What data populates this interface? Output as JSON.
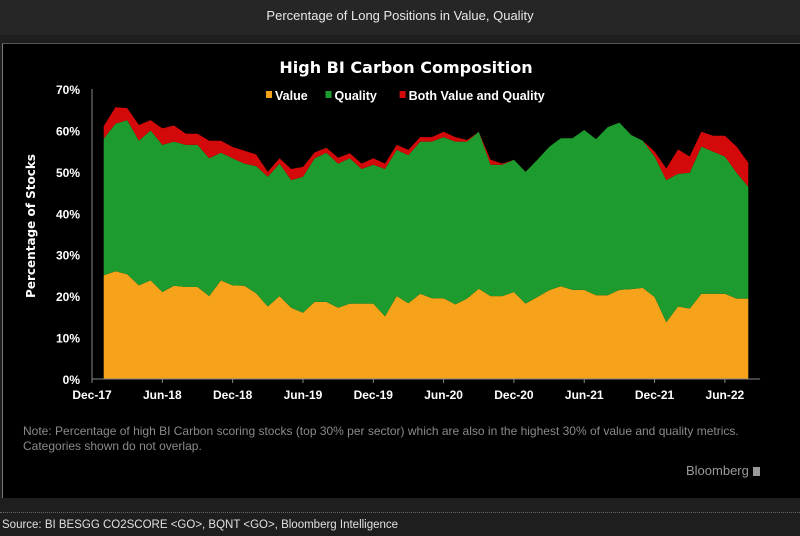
{
  "header": {
    "title": "Percentage of Long Positions in Value, Quality"
  },
  "chart_data": {
    "type": "area",
    "stacked": true,
    "title": "High BI Carbon Composition",
    "ylabel": "Percentage of Stocks",
    "xlabel": "",
    "ylim": [
      0,
      70
    ],
    "yticks": [
      "0%",
      "10%",
      "20%",
      "30%",
      "40%",
      "50%",
      "60%",
      "70%"
    ],
    "xticks": [
      "Dec-17",
      "Jun-18",
      "Dec-18",
      "Jun-19",
      "Dec-19",
      "Jun-20",
      "Dec-20",
      "Jun-21",
      "Dec-21",
      "Jun-22"
    ],
    "x_start": "Jan-18",
    "x_frequency": "monthly",
    "legend_position": "top-center",
    "grid": false,
    "series": [
      {
        "name": "Value",
        "color": "#f7a21b",
        "values": [
          25,
          26,
          25.3,
          22.6,
          23.8,
          21,
          22.5,
          22.2,
          22.2,
          20,
          23.8,
          22.6,
          22.5,
          20.7,
          17.5,
          20,
          17.2,
          16,
          18.6,
          18.6,
          17.2,
          18.2,
          18.2,
          18.2,
          15.1,
          20,
          18.3,
          20.6,
          19.5,
          19.5,
          18,
          19.4,
          21.8,
          20,
          20,
          21,
          18.2,
          19.8,
          21.4,
          22.4,
          21.5,
          21.5,
          20.2,
          20.2,
          21.5,
          21.7,
          22,
          19.8,
          13.7,
          17.5,
          17,
          20.6,
          20.6,
          20.6,
          19.4,
          19.4
        ]
      },
      {
        "name": "Quality",
        "color": "#1e9b2e",
        "values": [
          33,
          35.6,
          37.2,
          34.9,
          36.2,
          35.5,
          34.8,
          34.3,
          34.3,
          33.3,
          30.8,
          30.7,
          29.5,
          30.7,
          31.3,
          32,
          30.8,
          32.8,
          34.7,
          36,
          34.8,
          35.1,
          32.5,
          33.5,
          35.6,
          35.3,
          35.7,
          36.7,
          37.8,
          38.9,
          39.3,
          37.9,
          37.9,
          31.7,
          31.7,
          31.9,
          31.8,
          33.1,
          34.6,
          35.7,
          36.6,
          38.6,
          37.7,
          40.6,
          40.4,
          37.2,
          35.5,
          33.9,
          34.3,
          32,
          32.8,
          35.5,
          34.3,
          33.1,
          30.4,
          27
        ]
      },
      {
        "name": "Both Value and Quality",
        "color": "#d40a0a",
        "values": [
          3,
          4,
          2.9,
          3.8,
          2.5,
          4,
          3.9,
          2.7,
          2.7,
          4.2,
          2.9,
          2.7,
          3.1,
          2.8,
          1.2,
          1.3,
          2.7,
          2.4,
          1.4,
          1.2,
          1.4,
          1.2,
          1.3,
          1.6,
          1.3,
          1.2,
          1.3,
          1.1,
          1.1,
          1.3,
          1.1,
          0.4,
          0,
          1.2,
          0.3,
          0,
          0,
          0,
          0,
          0,
          0,
          0,
          0,
          0,
          0,
          0,
          0,
          1.2,
          2.8,
          5.9,
          3.9,
          3.6,
          3.8,
          5,
          6.3,
          5.8
        ]
      }
    ],
    "note": "Note: Percentage of high BI Carbon scoring stocks (top 30% per sector) which are also in the highest 30% of value and quality metrics. Categories shown do not overlap."
  },
  "branding": "Bloomberg",
  "source": "Source: BI BESGG CO2SCORE <GO>, BQNT <GO>, Bloomberg Intelligence"
}
